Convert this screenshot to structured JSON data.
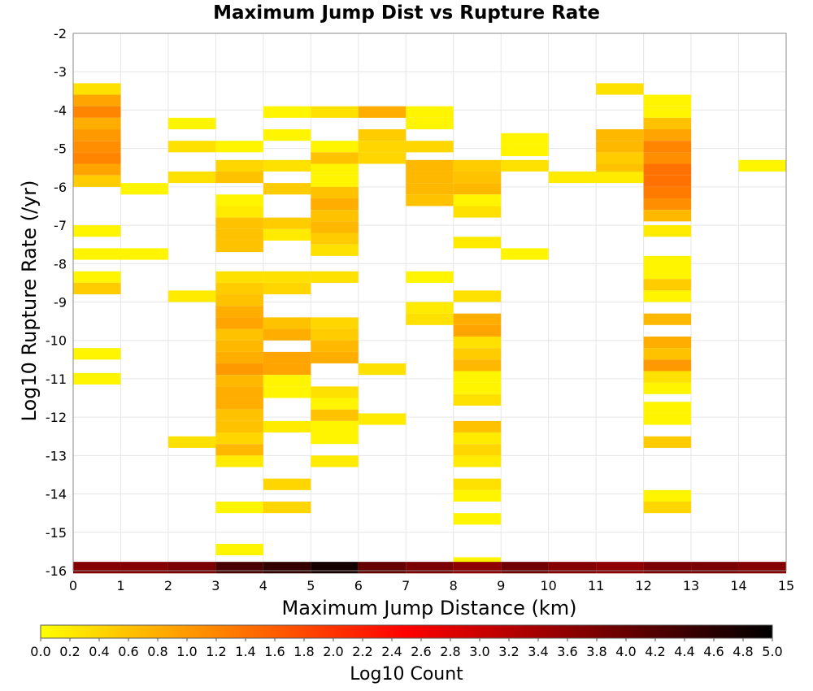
{
  "chart_data": {
    "type": "heatmap",
    "title": "Maximum Jump Dist vs Rupture Rate",
    "xlabel": "Maximum Jump Distance (km)",
    "ylabel": "Log10 Rupture Rate (/yr)",
    "xlim": [
      0,
      15
    ],
    "ylim": [
      -16,
      -2
    ],
    "x_ticks": [
      "0",
      "1",
      "2",
      "3",
      "4",
      "5",
      "6",
      "7",
      "8",
      "9",
      "10",
      "11",
      "12",
      "13",
      "14",
      "15"
    ],
    "y_ticks": [
      "-2",
      "-3",
      "-4",
      "-5",
      "-6",
      "-7",
      "-8",
      "-9",
      "-10",
      "-11",
      "-12",
      "-13",
      "-14",
      "-15",
      "-16"
    ],
    "grid": true,
    "cell_width": 1,
    "cell_height": 0.3,
    "colorbar": {
      "label": "Log10 Count",
      "range": [
        0,
        5
      ],
      "ticks": [
        "0.0",
        "0.2",
        "0.4",
        "0.6",
        "0.8",
        "1.0",
        "1.2",
        "1.4",
        "1.6",
        "1.8",
        "2.0",
        "2.2",
        "2.4",
        "2.6",
        "2.8",
        "3.0",
        "3.2",
        "3.4",
        "3.6",
        "3.8",
        "4.0",
        "4.2",
        "4.4",
        "4.6",
        "4.8",
        "5.0"
      ],
      "colors": [
        "#ffff00",
        "#ff8000",
        "#ff0000",
        "#800000",
        "#000000"
      ],
      "placement": "bottom"
    },
    "cells": [
      [
        0,
        -3.45,
        0.3
      ],
      [
        0,
        -3.75,
        0.9
      ],
      [
        0,
        -4.05,
        1.2
      ],
      [
        0,
        -4.35,
        0.8
      ],
      [
        0,
        -4.65,
        1.0
      ],
      [
        0,
        -4.95,
        1.1
      ],
      [
        0,
        -5.25,
        1.2
      ],
      [
        0,
        -5.55,
        0.9
      ],
      [
        0,
        -5.85,
        0.5
      ],
      [
        0,
        -7.15,
        0.1
      ],
      [
        0,
        -7.75,
        0.1
      ],
      [
        0,
        -8.35,
        0.1
      ],
      [
        0,
        -8.65,
        0.5
      ],
      [
        0,
        -10.35,
        0.1
      ],
      [
        0,
        -11.0,
        0.1
      ],
      [
        1,
        -6.05,
        0.1
      ],
      [
        1,
        -7.75,
        0.1
      ],
      [
        2,
        -4.35,
        0.1
      ],
      [
        2,
        -4.95,
        0.3
      ],
      [
        2,
        -5.75,
        0.3
      ],
      [
        2,
        -8.85,
        0.2
      ],
      [
        2,
        -12.65,
        0.3
      ],
      [
        3,
        -4.95,
        0.1
      ],
      [
        3,
        -5.45,
        0.4
      ],
      [
        3,
        -5.75,
        0.6
      ],
      [
        3,
        -6.35,
        0.1
      ],
      [
        3,
        -6.65,
        0.2
      ],
      [
        3,
        -6.95,
        0.6
      ],
      [
        3,
        -7.25,
        0.6
      ],
      [
        3,
        -7.55,
        0.6
      ],
      [
        3,
        -8.35,
        0.3
      ],
      [
        3,
        -8.65,
        0.5
      ],
      [
        3,
        -8.95,
        0.6
      ],
      [
        3,
        -9.25,
        0.8
      ],
      [
        3,
        -9.55,
        0.9
      ],
      [
        3,
        -9.85,
        0.6
      ],
      [
        3,
        -10.15,
        0.7
      ],
      [
        3,
        -10.45,
        0.8
      ],
      [
        3,
        -10.75,
        1.0
      ],
      [
        3,
        -11.05,
        0.7
      ],
      [
        3,
        -11.35,
        0.8
      ],
      [
        3,
        -11.65,
        0.8
      ],
      [
        3,
        -11.95,
        0.6
      ],
      [
        3,
        -12.25,
        0.6
      ],
      [
        3,
        -12.55,
        0.4
      ],
      [
        3,
        -12.85,
        0.7
      ],
      [
        3,
        -13.15,
        0.2
      ],
      [
        3,
        -14.35,
        0.1
      ],
      [
        3,
        -15.45,
        0.1
      ],
      [
        4,
        -4.05,
        0.1
      ],
      [
        4,
        -4.65,
        0.1
      ],
      [
        4,
        -5.45,
        0.3
      ],
      [
        4,
        -6.05,
        0.5
      ],
      [
        4,
        -6.95,
        0.5
      ],
      [
        4,
        -7.25,
        0.2
      ],
      [
        4,
        -8.35,
        0.3
      ],
      [
        4,
        -8.65,
        0.4
      ],
      [
        4,
        -9.55,
        0.6
      ],
      [
        4,
        -9.85,
        0.8
      ],
      [
        4,
        -10.45,
        0.9
      ],
      [
        4,
        -10.75,
        0.9
      ],
      [
        4,
        -11.05,
        0.1
      ],
      [
        4,
        -11.35,
        0.1
      ],
      [
        4,
        -12.25,
        0.2
      ],
      [
        4,
        -13.75,
        0.4
      ],
      [
        4,
        -14.35,
        0.4
      ],
      [
        5,
        -4.05,
        0.3
      ],
      [
        5,
        -4.95,
        0.1
      ],
      [
        5,
        -5.25,
        0.6
      ],
      [
        5,
        -5.55,
        0.1
      ],
      [
        5,
        -5.85,
        0.1
      ],
      [
        5,
        -6.15,
        0.6
      ],
      [
        5,
        -6.45,
        0.8
      ],
      [
        5,
        -6.75,
        0.6
      ],
      [
        5,
        -7.05,
        0.7
      ],
      [
        5,
        -7.35,
        0.5
      ],
      [
        5,
        -7.65,
        0.3
      ],
      [
        5,
        -8.35,
        0.3
      ],
      [
        5,
        -9.55,
        0.4
      ],
      [
        5,
        -9.85,
        0.5
      ],
      [
        5,
        -10.15,
        0.7
      ],
      [
        5,
        -10.45,
        0.8
      ],
      [
        5,
        -11.35,
        0.3
      ],
      [
        5,
        -11.65,
        0.1
      ],
      [
        5,
        -11.95,
        0.6
      ],
      [
        5,
        -12.25,
        0.1
      ],
      [
        5,
        -12.55,
        0.1
      ],
      [
        5,
        -13.15,
        0.2
      ],
      [
        6,
        -4.05,
        0.8
      ],
      [
        6,
        -4.65,
        0.5
      ],
      [
        6,
        -4.95,
        0.4
      ],
      [
        6,
        -5.25,
        0.4
      ],
      [
        6,
        -10.75,
        0.3
      ],
      [
        6,
        -12.05,
        0.2
      ],
      [
        7,
        -4.05,
        0.1
      ],
      [
        7,
        -4.35,
        0.1
      ],
      [
        7,
        -4.95,
        0.4
      ],
      [
        7,
        -5.45,
        0.7
      ],
      [
        7,
        -5.75,
        0.7
      ],
      [
        7,
        -6.05,
        0.7
      ],
      [
        7,
        -6.35,
        0.6
      ],
      [
        7,
        -8.35,
        0.1
      ],
      [
        7,
        -9.15,
        0.2
      ],
      [
        7,
        -9.45,
        0.3
      ],
      [
        8,
        -5.45,
        0.5
      ],
      [
        8,
        -5.75,
        0.6
      ],
      [
        8,
        -6.05,
        0.7
      ],
      [
        8,
        -6.35,
        0.1
      ],
      [
        8,
        -6.65,
        0.3
      ],
      [
        8,
        -7.45,
        0.2
      ],
      [
        8,
        -8.85,
        0.3
      ],
      [
        8,
        -9.45,
        0.8
      ],
      [
        8,
        -9.75,
        0.9
      ],
      [
        8,
        -10.05,
        0.3
      ],
      [
        8,
        -10.35,
        0.5
      ],
      [
        8,
        -10.65,
        0.7
      ],
      [
        8,
        -10.95,
        0.1
      ],
      [
        8,
        -11.25,
        0.1
      ],
      [
        8,
        -11.55,
        0.3
      ],
      [
        8,
        -12.25,
        0.6
      ],
      [
        8,
        -12.55,
        0.2
      ],
      [
        8,
        -12.85,
        0.4
      ],
      [
        8,
        -13.15,
        0.2
      ],
      [
        8,
        -13.75,
        0.3
      ],
      [
        8,
        -14.05,
        0.1
      ],
      [
        8,
        -14.65,
        0.1
      ],
      [
        8,
        -15.8,
        0.1
      ],
      [
        9,
        -4.75,
        0.1
      ],
      [
        9,
        -5.05,
        0.1
      ],
      [
        9,
        -5.45,
        0.3
      ],
      [
        9,
        -7.75,
        0.1
      ],
      [
        10,
        -5.75,
        0.2
      ],
      [
        11,
        -3.45,
        0.3
      ],
      [
        11,
        -4.65,
        0.7
      ],
      [
        11,
        -4.95,
        0.7
      ],
      [
        11,
        -5.25,
        0.5
      ],
      [
        11,
        -5.55,
        0.6
      ],
      [
        11,
        -5.75,
        0.2
      ],
      [
        12,
        -3.75,
        0.1
      ],
      [
        12,
        -4.05,
        0.1
      ],
      [
        12,
        -4.35,
        0.6
      ],
      [
        12,
        -4.65,
        0.9
      ],
      [
        12,
        -4.95,
        1.2
      ],
      [
        12,
        -5.25,
        1.1
      ],
      [
        12,
        -5.55,
        1.4
      ],
      [
        12,
        -5.85,
        1.4
      ],
      [
        12,
        -6.15,
        1.3
      ],
      [
        12,
        -6.45,
        1.1
      ],
      [
        12,
        -6.75,
        0.7
      ],
      [
        12,
        -7.15,
        0.2
      ],
      [
        12,
        -7.95,
        0.1
      ],
      [
        12,
        -8.25,
        0.1
      ],
      [
        12,
        -8.55,
        0.5
      ],
      [
        12,
        -8.85,
        0.1
      ],
      [
        12,
        -9.45,
        0.7
      ],
      [
        12,
        -10.05,
        0.8
      ],
      [
        12,
        -10.35,
        0.6
      ],
      [
        12,
        -10.65,
        1.0
      ],
      [
        12,
        -10.95,
        0.3
      ],
      [
        12,
        -11.25,
        0.1
      ],
      [
        12,
        -11.75,
        0.1
      ],
      [
        12,
        -12.05,
        0.1
      ],
      [
        12,
        -12.65,
        0.5
      ],
      [
        12,
        -14.05,
        0.1
      ],
      [
        12,
        -14.35,
        0.4
      ],
      [
        14,
        -5.45,
        0.1
      ],
      [
        0,
        -15.92,
        3.7
      ],
      [
        1,
        -15.92,
        3.7
      ],
      [
        2,
        -15.92,
        3.8
      ],
      [
        3,
        -15.92,
        4.3
      ],
      [
        4,
        -15.92,
        4.5
      ],
      [
        5,
        -15.92,
        4.8
      ],
      [
        6,
        -15.92,
        4.0
      ],
      [
        7,
        -15.92,
        3.8
      ],
      [
        8,
        -15.92,
        3.6
      ],
      [
        9,
        -15.92,
        3.9
      ],
      [
        10,
        -15.92,
        3.7
      ],
      [
        11,
        -15.92,
        3.6
      ],
      [
        12,
        -15.92,
        3.8
      ],
      [
        13,
        -15.92,
        3.8
      ],
      [
        14,
        -15.92,
        3.7
      ]
    ]
  }
}
